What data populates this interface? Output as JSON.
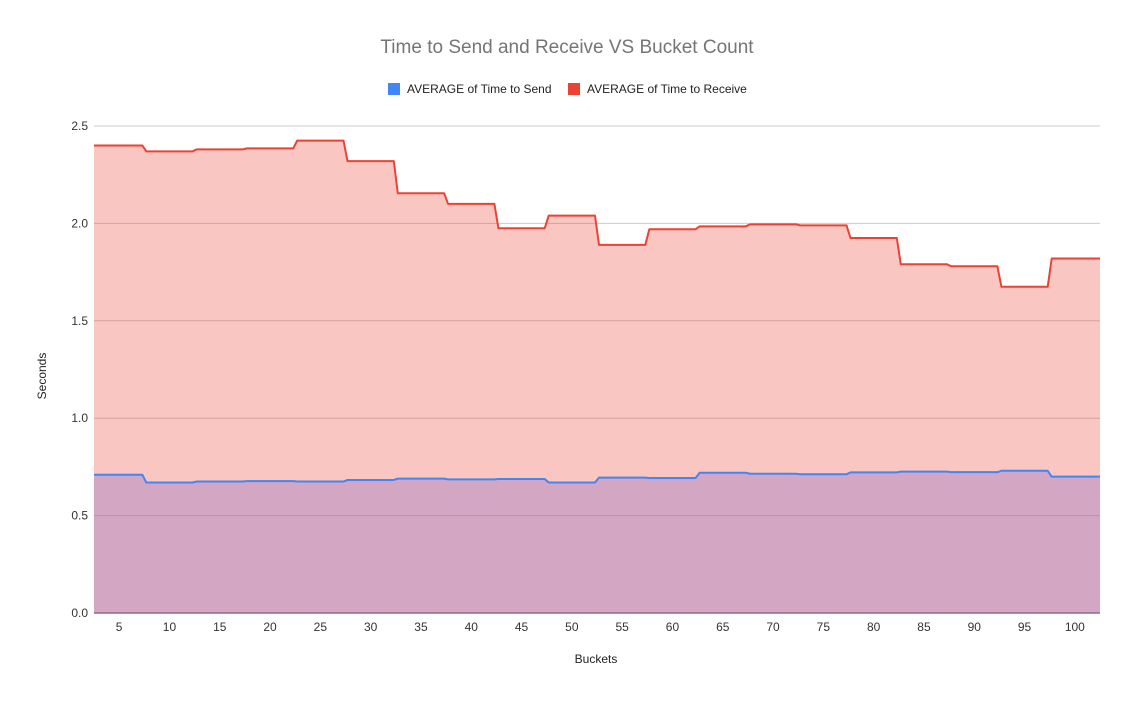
{
  "chart_data": {
    "type": "area",
    "step": true,
    "title": "Time to Send and Receive VS Bucket Count",
    "xlabel": "Buckets",
    "ylabel": "Seconds",
    "ylim": [
      0,
      2.5
    ],
    "yticks": [
      "0.0",
      "0.5",
      "1.0",
      "1.5",
      "2.0",
      "2.5"
    ],
    "ytick_values": [
      0,
      0.5,
      1.0,
      1.5,
      2.0,
      2.5
    ],
    "grid": true,
    "legend_position": "top",
    "categories": [
      "5",
      "10",
      "15",
      "20",
      "25",
      "30",
      "35",
      "40",
      "45",
      "50",
      "55",
      "60",
      "65",
      "70",
      "75",
      "80",
      "85",
      "90",
      "95",
      "100"
    ],
    "series": [
      {
        "name": "AVERAGE of Time to Send",
        "line_color": "#4285f4",
        "values": [
          0.71,
          0.67,
          0.675,
          0.677,
          0.675,
          0.683,
          0.69,
          0.686,
          0.688,
          0.67,
          0.695,
          0.693,
          0.72,
          0.715,
          0.712,
          0.722,
          0.726,
          0.723,
          0.73,
          0.7
        ]
      },
      {
        "name": "AVERAGE of Time to Receive",
        "line_color": "#ea4335",
        "values": [
          2.4,
          2.37,
          2.38,
          2.385,
          2.425,
          2.32,
          2.155,
          2.1,
          1.975,
          2.04,
          1.89,
          1.97,
          1.985,
          1.995,
          1.99,
          1.925,
          1.79,
          1.78,
          1.675,
          1.82
        ]
      }
    ]
  }
}
